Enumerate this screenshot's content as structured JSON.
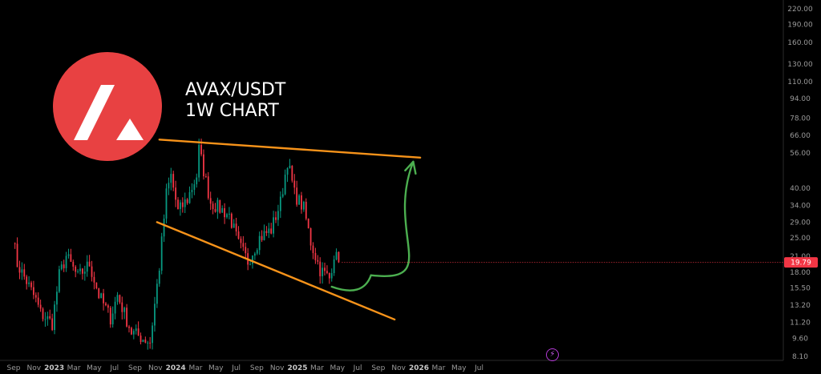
{
  "title": {
    "pair": "AVAX/USDT",
    "timeframe": "1W CHART"
  },
  "colors": {
    "up": "#089981",
    "down": "#f23645",
    "trendline": "#f7931a",
    "arrow": "#4caf50",
    "last_price_bg": "#f23645",
    "logo": "#e84142"
  },
  "logo": {
    "icon": "avalanche-logo-icon"
  },
  "event_icon": "lightning-icon",
  "chart_data": {
    "type": "candlestick",
    "title": "AVAX/USDT 1W CHART",
    "scale": "log",
    "ylim": [
      8.1,
      232
    ],
    "price_ticks": [
      "220.00",
      "190.00",
      "160.00",
      "130.00",
      "110.00",
      "94.00",
      "78.00",
      "66.00",
      "56.00",
      "40.00",
      "34.00",
      "29.00",
      "25.00",
      "21.00",
      "18.00",
      "15.50",
      "13.20",
      "11.20",
      "9.60",
      "8.10"
    ],
    "time_ticks": [
      {
        "label": "Sep",
        "date": "2022-09-01"
      },
      {
        "label": "Nov",
        "date": "2022-11-01"
      },
      {
        "label": "2023",
        "date": "2023-01-01",
        "bold": true
      },
      {
        "label": "Mar",
        "date": "2023-03-01"
      },
      {
        "label": "May",
        "date": "2023-05-01"
      },
      {
        "label": "Jul",
        "date": "2023-07-01"
      },
      {
        "label": "Sep",
        "date": "2023-09-01"
      },
      {
        "label": "Nov",
        "date": "2023-11-01"
      },
      {
        "label": "2024",
        "date": "2024-01-01",
        "bold": true
      },
      {
        "label": "Mar",
        "date": "2024-03-01"
      },
      {
        "label": "May",
        "date": "2024-05-01"
      },
      {
        "label": "Jul",
        "date": "2024-07-01"
      },
      {
        "label": "Sep",
        "date": "2024-09-01"
      },
      {
        "label": "Nov",
        "date": "2024-11-01"
      },
      {
        "label": "2025",
        "date": "2025-01-01",
        "bold": true
      },
      {
        "label": "Mar",
        "date": "2025-03-01"
      },
      {
        "label": "May",
        "date": "2025-05-01"
      },
      {
        "label": "Jul",
        "date": "2025-07-01"
      },
      {
        "label": "Sep",
        "date": "2025-09-01"
      },
      {
        "label": "Nov",
        "date": "2025-11-01"
      },
      {
        "label": "2026",
        "date": "2026-01-01",
        "bold": true
      },
      {
        "label": "Mar",
        "date": "2026-03-01"
      },
      {
        "label": "May",
        "date": "2026-05-01"
      },
      {
        "label": "Jul",
        "date": "2026-07-01"
      }
    ],
    "last_price": "19.79",
    "anchors": [
      {
        "date": "2022-08-29",
        "price": 25.5
      },
      {
        "date": "2022-09-12",
        "price": 19.5
      },
      {
        "date": "2022-10-10",
        "price": 16.5
      },
      {
        "date": "2022-11-07",
        "price": 13.8
      },
      {
        "date": "2022-11-21",
        "price": 12.2
      },
      {
        "date": "2022-12-26",
        "price": 11.1
      },
      {
        "date": "2023-01-16",
        "price": 17.5
      },
      {
        "date": "2023-02-06",
        "price": 21.0
      },
      {
        "date": "2023-03-13",
        "price": 17.2
      },
      {
        "date": "2023-04-17",
        "price": 19.5
      },
      {
        "date": "2023-05-15",
        "price": 14.5
      },
      {
        "date": "2023-06-19",
        "price": 11.7
      },
      {
        "date": "2023-07-10",
        "price": 14.5
      },
      {
        "date": "2023-08-21",
        "price": 10.2
      },
      {
        "date": "2023-10-16",
        "price": 9.3
      },
      {
        "date": "2023-11-13",
        "price": 19.0
      },
      {
        "date": "2023-12-04",
        "price": 38.0
      },
      {
        "date": "2023-12-18",
        "price": 45.0
      },
      {
        "date": "2024-01-08",
        "price": 32.0
      },
      {
        "date": "2024-02-05",
        "price": 36.0
      },
      {
        "date": "2024-03-04",
        "price": 45.0
      },
      {
        "date": "2024-03-11",
        "price": 58.0
      },
      {
        "date": "2024-04-15",
        "price": 35.0
      },
      {
        "date": "2024-05-13",
        "price": 33.0
      },
      {
        "date": "2024-06-10",
        "price": 31.0
      },
      {
        "date": "2024-07-08",
        "price": 23.5
      },
      {
        "date": "2024-08-05",
        "price": 20.0
      },
      {
        "date": "2024-09-09",
        "price": 25.0
      },
      {
        "date": "2024-10-14",
        "price": 27.0
      },
      {
        "date": "2024-11-11",
        "price": 35.0
      },
      {
        "date": "2024-12-02",
        "price": 52.0
      },
      {
        "date": "2024-12-23",
        "price": 38.0
      },
      {
        "date": "2025-01-20",
        "price": 33.0
      },
      {
        "date": "2025-02-10",
        "price": 24.0
      },
      {
        "date": "2025-03-10",
        "price": 18.5
      },
      {
        "date": "2025-04-07",
        "price": 17.0
      },
      {
        "date": "2025-04-21",
        "price": 21.5
      },
      {
        "date": "2025-05-05",
        "price": 19.79
      }
    ],
    "trendlines": [
      {
        "name": "upper",
        "from": {
          "date": "2023-11-13",
          "price": 63.5
        },
        "to": {
          "date": "2026-01-05",
          "price": 53.5
        }
      },
      {
        "name": "lower",
        "from": {
          "date": "2023-11-06",
          "price": 29.0
        },
        "to": {
          "date": "2025-10-20",
          "price": 11.5
        }
      }
    ],
    "projection": [
      {
        "date": "2025-04-14",
        "price": 15.7
      },
      {
        "date": "2025-08-10",
        "price": 17.5
      },
      {
        "date": "2025-12-15",
        "price": 51.5
      }
    ]
  }
}
